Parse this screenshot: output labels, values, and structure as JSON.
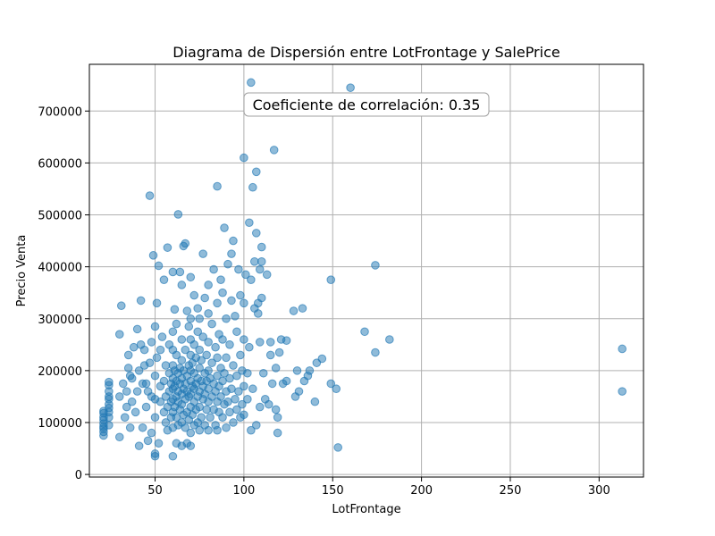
{
  "chart_data": {
    "type": "scatter",
    "title": "Diagrama de Dispersión entre LotFrontage y SalePrice",
    "xlabel": "LotFrontage",
    "ylabel": "Precio Venta",
    "xlim": [
      13,
      325
    ],
    "ylim": [
      -5000,
      790000
    ],
    "xticks": [
      50,
      100,
      150,
      200,
      250,
      300
    ],
    "xtick_labels": [
      "50",
      "100",
      "150",
      "200",
      "250",
      "300"
    ],
    "yticks": [
      0,
      100000,
      200000,
      300000,
      400000,
      500000,
      600000,
      700000
    ],
    "ytick_labels": [
      "0",
      "100000",
      "200000",
      "300000",
      "400000",
      "500000",
      "600000",
      "700000"
    ],
    "grid": true,
    "annotation": "Coeficiente de correlación: 0.35",
    "point_color": "#1f77b4",
    "point_alpha": 0.5,
    "series": [
      {
        "values": [
          [
            21,
            75000
          ],
          [
            21,
            82000
          ],
          [
            21,
            88000
          ],
          [
            21,
            92000
          ],
          [
            21,
            98000
          ],
          [
            21,
            105000
          ],
          [
            21,
            110000
          ],
          [
            21,
            118000
          ],
          [
            21,
            122000
          ],
          [
            24,
            95000
          ],
          [
            24,
            110000
          ],
          [
            24,
            120000
          ],
          [
            24,
            128000
          ],
          [
            24,
            135000
          ],
          [
            24,
            145000
          ],
          [
            24,
            150000
          ],
          [
            24,
            160000
          ],
          [
            24,
            172000
          ],
          [
            24,
            178000
          ],
          [
            30,
            72000
          ],
          [
            30,
            150000
          ],
          [
            30,
            270000
          ],
          [
            31,
            325000
          ],
          [
            32,
            175000
          ],
          [
            33,
            110000
          ],
          [
            34,
            130000
          ],
          [
            34,
            160000
          ],
          [
            35,
            205000
          ],
          [
            35,
            230000
          ],
          [
            36,
            90000
          ],
          [
            36,
            190000
          ],
          [
            37,
            140000
          ],
          [
            37,
            185000
          ],
          [
            38,
            245000
          ],
          [
            39,
            120000
          ],
          [
            40,
            160000
          ],
          [
            40,
            280000
          ],
          [
            41,
            55000
          ],
          [
            41,
            200000
          ],
          [
            42,
            250000
          ],
          [
            42,
            335000
          ],
          [
            43,
            90000
          ],
          [
            43,
            175000
          ],
          [
            44,
            210000
          ],
          [
            44,
            240000
          ],
          [
            45,
            130000
          ],
          [
            45,
            175000
          ],
          [
            46,
            65000
          ],
          [
            46,
            160000
          ],
          [
            47,
            215000
          ],
          [
            47,
            537000
          ],
          [
            48,
            80000
          ],
          [
            48,
            150000
          ],
          [
            48,
            255000
          ],
          [
            49,
            422000
          ],
          [
            50,
            40000
          ],
          [
            50,
            35000
          ],
          [
            50,
            110000
          ],
          [
            50,
            145000
          ],
          [
            50,
            190000
          ],
          [
            50,
            285000
          ],
          [
            51,
            330000
          ],
          [
            51,
            225000
          ],
          [
            52,
            60000
          ],
          [
            52,
            402000
          ],
          [
            53,
            140000
          ],
          [
            53,
            170000
          ],
          [
            53,
            240000
          ],
          [
            54,
            265000
          ],
          [
            55,
            120000
          ],
          [
            55,
            180000
          ],
          [
            55,
            375000
          ],
          [
            56,
            100000
          ],
          [
            56,
            150000
          ],
          [
            56,
            210000
          ],
          [
            57,
            85000
          ],
          [
            57,
            130000
          ],
          [
            57,
            437000
          ],
          [
            58,
            160000
          ],
          [
            58,
            195000
          ],
          [
            58,
            250000
          ],
          [
            59,
            110000
          ],
          [
            59,
            140000
          ],
          [
            59,
            175000
          ],
          [
            60,
            35000
          ],
          [
            60,
            90000
          ],
          [
            60,
            120000
          ],
          [
            60,
            145000
          ],
          [
            60,
            165000
          ],
          [
            60,
            185000
          ],
          [
            60,
            210000
          ],
          [
            60,
            240000
          ],
          [
            60,
            275000
          ],
          [
            60,
            390000
          ],
          [
            61,
            130000
          ],
          [
            61,
            170000
          ],
          [
            61,
            200000
          ],
          [
            61,
            318000
          ],
          [
            62,
            60000
          ],
          [
            62,
            110000
          ],
          [
            62,
            150000
          ],
          [
            62,
            180000
          ],
          [
            62,
            230000
          ],
          [
            62,
            290000
          ],
          [
            63,
            501000
          ],
          [
            63,
            95000
          ],
          [
            63,
            140000
          ],
          [
            63,
            160000
          ],
          [
            63,
            195000
          ],
          [
            64,
            390000
          ],
          [
            64,
            125000
          ],
          [
            64,
            175000
          ],
          [
            64,
            205000
          ],
          [
            65,
            55000
          ],
          [
            65,
            100000
          ],
          [
            65,
            135000
          ],
          [
            65,
            155000
          ],
          [
            65,
            185000
          ],
          [
            65,
            220000
          ],
          [
            65,
            260000
          ],
          [
            65,
            365000
          ],
          [
            66,
            440000
          ],
          [
            66,
            115000
          ],
          [
            66,
            165000
          ],
          [
            66,
            200000
          ],
          [
            67,
            445000
          ],
          [
            67,
            90000
          ],
          [
            67,
            145000
          ],
          [
            67,
            175000
          ],
          [
            67,
            240000
          ],
          [
            68,
            60000
          ],
          [
            68,
            120000
          ],
          [
            68,
            160000
          ],
          [
            68,
            190000
          ],
          [
            68,
            315000
          ],
          [
            69,
            105000
          ],
          [
            69,
            150000
          ],
          [
            69,
            210000
          ],
          [
            69,
            285000
          ],
          [
            70,
            55000
          ],
          [
            70,
            80000
          ],
          [
            70,
            130000
          ],
          [
            70,
            155000
          ],
          [
            70,
            180000
          ],
          [
            70,
            200000
          ],
          [
            70,
            230000
          ],
          [
            70,
            260000
          ],
          [
            70,
            300000
          ],
          [
            70,
            380000
          ],
          [
            71,
            115000
          ],
          [
            71,
            170000
          ],
          [
            71,
            215000
          ],
          [
            72,
            95000
          ],
          [
            72,
            140000
          ],
          [
            72,
            165000
          ],
          [
            72,
            195000
          ],
          [
            72,
            250000
          ],
          [
            72,
            345000
          ],
          [
            73,
            125000
          ],
          [
            73,
            175000
          ],
          [
            73,
            225000
          ],
          [
            74,
            100000
          ],
          [
            74,
            150000
          ],
          [
            74,
            185000
          ],
          [
            74,
            275000
          ],
          [
            74,
            320000
          ],
          [
            75,
            85000
          ],
          [
            75,
            130000
          ],
          [
            75,
            160000
          ],
          [
            75,
            205000
          ],
          [
            75,
            240000
          ],
          [
            75,
            300000
          ],
          [
            76,
            110000
          ],
          [
            76,
            180000
          ],
          [
            76,
            220000
          ],
          [
            77,
            425000
          ],
          [
            77,
            145000
          ],
          [
            77,
            170000
          ],
          [
            77,
            265000
          ],
          [
            78,
            95000
          ],
          [
            78,
            155000
          ],
          [
            78,
            195000
          ],
          [
            78,
            340000
          ],
          [
            79,
            125000
          ],
          [
            79,
            180000
          ],
          [
            79,
            230000
          ],
          [
            80,
            85000
          ],
          [
            80,
            140000
          ],
          [
            80,
            165000
          ],
          [
            80,
            200000
          ],
          [
            80,
            255000
          ],
          [
            80,
            310000
          ],
          [
            80,
            365000
          ],
          [
            81,
            110000
          ],
          [
            81,
            185000
          ],
          [
            82,
            150000
          ],
          [
            82,
            215000
          ],
          [
            82,
            290000
          ],
          [
            83,
            125000
          ],
          [
            83,
            175000
          ],
          [
            83,
            395000
          ],
          [
            84,
            95000
          ],
          [
            84,
            160000
          ],
          [
            84,
            245000
          ],
          [
            85,
            555000
          ],
          [
            85,
            85000
          ],
          [
            85,
            140000
          ],
          [
            85,
            190000
          ],
          [
            85,
            225000
          ],
          [
            85,
            330000
          ],
          [
            86,
            120000
          ],
          [
            86,
            170000
          ],
          [
            86,
            270000
          ],
          [
            87,
            375000
          ],
          [
            87,
            150000
          ],
          [
            87,
            205000
          ],
          [
            88,
            110000
          ],
          [
            88,
            180000
          ],
          [
            88,
            260000
          ],
          [
            88,
            350000
          ],
          [
            89,
            475000
          ],
          [
            89,
            135000
          ],
          [
            89,
            195000
          ],
          [
            90,
            90000
          ],
          [
            90,
            160000
          ],
          [
            90,
            225000
          ],
          [
            90,
            300000
          ],
          [
            91,
            405000
          ],
          [
            91,
            140000
          ],
          [
            92,
            120000
          ],
          [
            92,
            185000
          ],
          [
            92,
            250000
          ],
          [
            93,
            425000
          ],
          [
            93,
            165000
          ],
          [
            93,
            335000
          ],
          [
            94,
            450000
          ],
          [
            94,
            100000
          ],
          [
            94,
            210000
          ],
          [
            95,
            145000
          ],
          [
            95,
            305000
          ],
          [
            96,
            125000
          ],
          [
            96,
            190000
          ],
          [
            96,
            275000
          ],
          [
            97,
            395000
          ],
          [
            97,
            160000
          ],
          [
            98,
            110000
          ],
          [
            98,
            230000
          ],
          [
            98,
            345000
          ],
          [
            99,
            135000
          ],
          [
            99,
            200000
          ],
          [
            100,
            610000
          ],
          [
            100,
            115000
          ],
          [
            100,
            170000
          ],
          [
            100,
            260000
          ],
          [
            100,
            330000
          ],
          [
            101,
            385000
          ],
          [
            102,
            145000
          ],
          [
            102,
            195000
          ],
          [
            103,
            485000
          ],
          [
            103,
            245000
          ],
          [
            104,
            85000
          ],
          [
            104,
            755000
          ],
          [
            104,
            375000
          ],
          [
            105,
            553000
          ],
          [
            105,
            165000
          ],
          [
            106,
            410000
          ],
          [
            106,
            320000
          ],
          [
            107,
            583000
          ],
          [
            107,
            465000
          ],
          [
            107,
            95000
          ],
          [
            108,
            310000
          ],
          [
            108,
            330000
          ],
          [
            109,
            130000
          ],
          [
            109,
            395000
          ],
          [
            109,
            255000
          ],
          [
            110,
            438000
          ],
          [
            110,
            410000
          ],
          [
            110,
            340000
          ],
          [
            111,
            195000
          ],
          [
            112,
            145000
          ],
          [
            113,
            385000
          ],
          [
            114,
            135000
          ],
          [
            115,
            255000
          ],
          [
            115,
            230000
          ],
          [
            116,
            175000
          ],
          [
            117,
            625000
          ],
          [
            118,
            205000
          ],
          [
            118,
            125000
          ],
          [
            119,
            110000
          ],
          [
            119,
            80000
          ],
          [
            120,
            235000
          ],
          [
            121,
            260000
          ],
          [
            122,
            175000
          ],
          [
            124,
            180000
          ],
          [
            124,
            258000
          ],
          [
            128,
            315000
          ],
          [
            129,
            150000
          ],
          [
            130,
            200000
          ],
          [
            131,
            160000
          ],
          [
            133,
            320000
          ],
          [
            134,
            180000
          ],
          [
            136,
            190000
          ],
          [
            137,
            200000
          ],
          [
            140,
            140000
          ],
          [
            141,
            215000
          ],
          [
            144,
            223000
          ],
          [
            149,
            375000
          ],
          [
            149,
            175000
          ],
          [
            152,
            165000
          ],
          [
            153,
            52000
          ],
          [
            160,
            745000
          ],
          [
            168,
            275000
          ],
          [
            174,
            403000
          ],
          [
            174,
            235000
          ],
          [
            182,
            260000
          ],
          [
            313,
            242000
          ],
          [
            313,
            160000
          ]
        ]
      }
    ]
  }
}
